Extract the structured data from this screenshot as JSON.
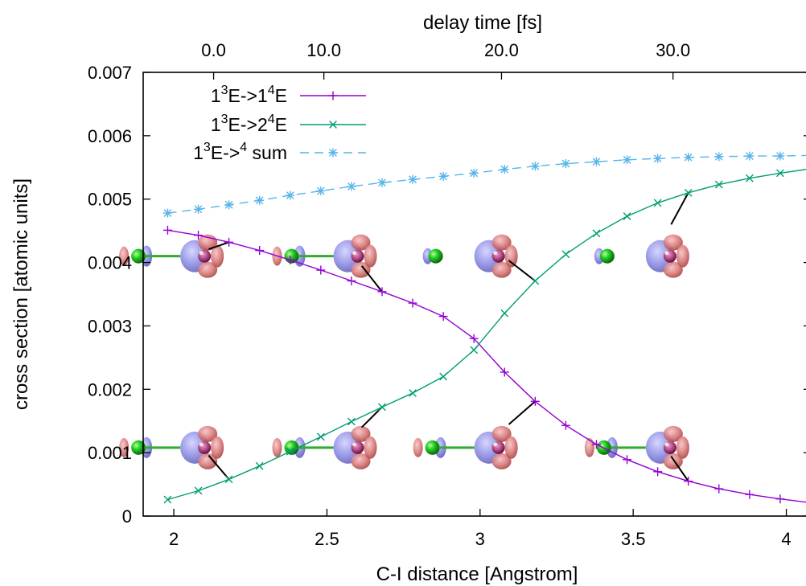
{
  "chart_data": {
    "type": "line",
    "xlabel": "C-I distance [Angstrom]",
    "ylabel": "cross section [atomic units]",
    "x2label": "delay time [fs]",
    "xlim": [
      1.9,
      4.08
    ],
    "ylim": [
      0,
      0.007
    ],
    "x_ticks": [
      2,
      2.5,
      3,
      3.5,
      4
    ],
    "x_tick_labels": [
      "2",
      "2.5",
      "3",
      "3.5",
      "4"
    ],
    "y_ticks": [
      0,
      0.001,
      0.002,
      0.003,
      0.004,
      0.005,
      0.006,
      0.007
    ],
    "y_tick_labels": [
      "0",
      "0.001",
      "0.002",
      "0.003",
      "0.004",
      "0.005",
      "0.006",
      "0.007"
    ],
    "x2_ticks": [
      2.13,
      2.49,
      3.07,
      3.63
    ],
    "x2_tick_labels": [
      "0.0",
      "10.0",
      "20.0",
      "30.0"
    ],
    "grid": false,
    "legend_position": "top-left",
    "colors": {
      "s1": "#9400d3",
      "s2": "#009e73",
      "s3": "#56b4e9"
    },
    "x": [
      1.98,
      2.08,
      2.18,
      2.28,
      2.38,
      2.48,
      2.58,
      2.68,
      2.78,
      2.88,
      2.98,
      3.08,
      3.18,
      3.28,
      3.38,
      3.48,
      3.58,
      3.68,
      3.78,
      3.88,
      3.98,
      4.08
    ],
    "series": [
      {
        "name": "1³E->1⁴E",
        "legend_parts": [
          "1",
          "3",
          "E->1",
          "4",
          "E"
        ],
        "color": "#9400d3",
        "marker": "plus",
        "dashed": false,
        "values": [
          0.00451,
          0.00443,
          0.00432,
          0.00419,
          0.00404,
          0.00388,
          0.00371,
          0.00354,
          0.00336,
          0.00315,
          0.0028,
          0.00227,
          0.00181,
          0.00143,
          0.00113,
          0.00089,
          0.0007,
          0.00055,
          0.00043,
          0.00034,
          0.00027,
          0.00021
        ]
      },
      {
        "name": "1³E->2⁴E",
        "legend_parts": [
          "1",
          "3",
          "E->2",
          "4",
          "E"
        ],
        "color": "#009e73",
        "marker": "x",
        "dashed": false,
        "values": [
          0.00026,
          0.0004,
          0.00058,
          0.00079,
          0.00102,
          0.00125,
          0.00149,
          0.00172,
          0.00194,
          0.0022,
          0.00262,
          0.0032,
          0.00371,
          0.00413,
          0.00446,
          0.00473,
          0.00494,
          0.0051,
          0.00523,
          0.00533,
          0.00541,
          0.00548
        ]
      },
      {
        "name": "1³E->⁴ sum",
        "legend_parts": [
          "1",
          "3",
          "E->",
          "4",
          " sum"
        ],
        "color": "#56b4e9",
        "marker": "star",
        "dashed": true,
        "values": [
          0.00478,
          0.00484,
          0.00491,
          0.00498,
          0.00506,
          0.00513,
          0.0052,
          0.00526,
          0.00531,
          0.00536,
          0.00541,
          0.00547,
          0.00552,
          0.00556,
          0.00559,
          0.00562,
          0.00564,
          0.00566,
          0.00567,
          0.00568,
          0.00568,
          0.00569
        ]
      }
    ],
    "orbital_insets": [
      {
        "name": "orbital-inset-1-upper",
        "x": 2.1,
        "y": 0.0041,
        "pointer_to": [
          2.18,
          0.00432
        ],
        "style": "bound"
      },
      {
        "name": "orbital-inset-2-upper",
        "x": 2.6,
        "y": 0.0041,
        "pointer_to": [
          2.68,
          0.00354
        ],
        "style": "bound"
      },
      {
        "name": "orbital-inset-3-upper",
        "x": 3.06,
        "y": 0.0041,
        "pointer_to": [
          3.18,
          0.00371
        ],
        "style": "separated"
      },
      {
        "name": "orbital-inset-4-upper",
        "x": 3.62,
        "y": 0.0041,
        "pointer_to": [
          3.68,
          0.0051
        ],
        "style": "separated"
      },
      {
        "name": "orbital-inset-1-lower",
        "x": 2.1,
        "y": 0.00108,
        "pointer_to": [
          2.18,
          0.00058
        ],
        "style": "bound"
      },
      {
        "name": "orbital-inset-2-lower",
        "x": 2.6,
        "y": 0.00108,
        "pointer_to": [
          2.68,
          0.00172
        ],
        "style": "bound"
      },
      {
        "name": "orbital-inset-3-lower",
        "x": 3.06,
        "y": 0.00108,
        "pointer_to": [
          3.18,
          0.00181
        ],
        "style": "bound"
      },
      {
        "name": "orbital-inset-4-lower",
        "x": 3.62,
        "y": 0.00108,
        "pointer_to": [
          3.68,
          0.00055
        ],
        "style": "bound"
      }
    ]
  }
}
